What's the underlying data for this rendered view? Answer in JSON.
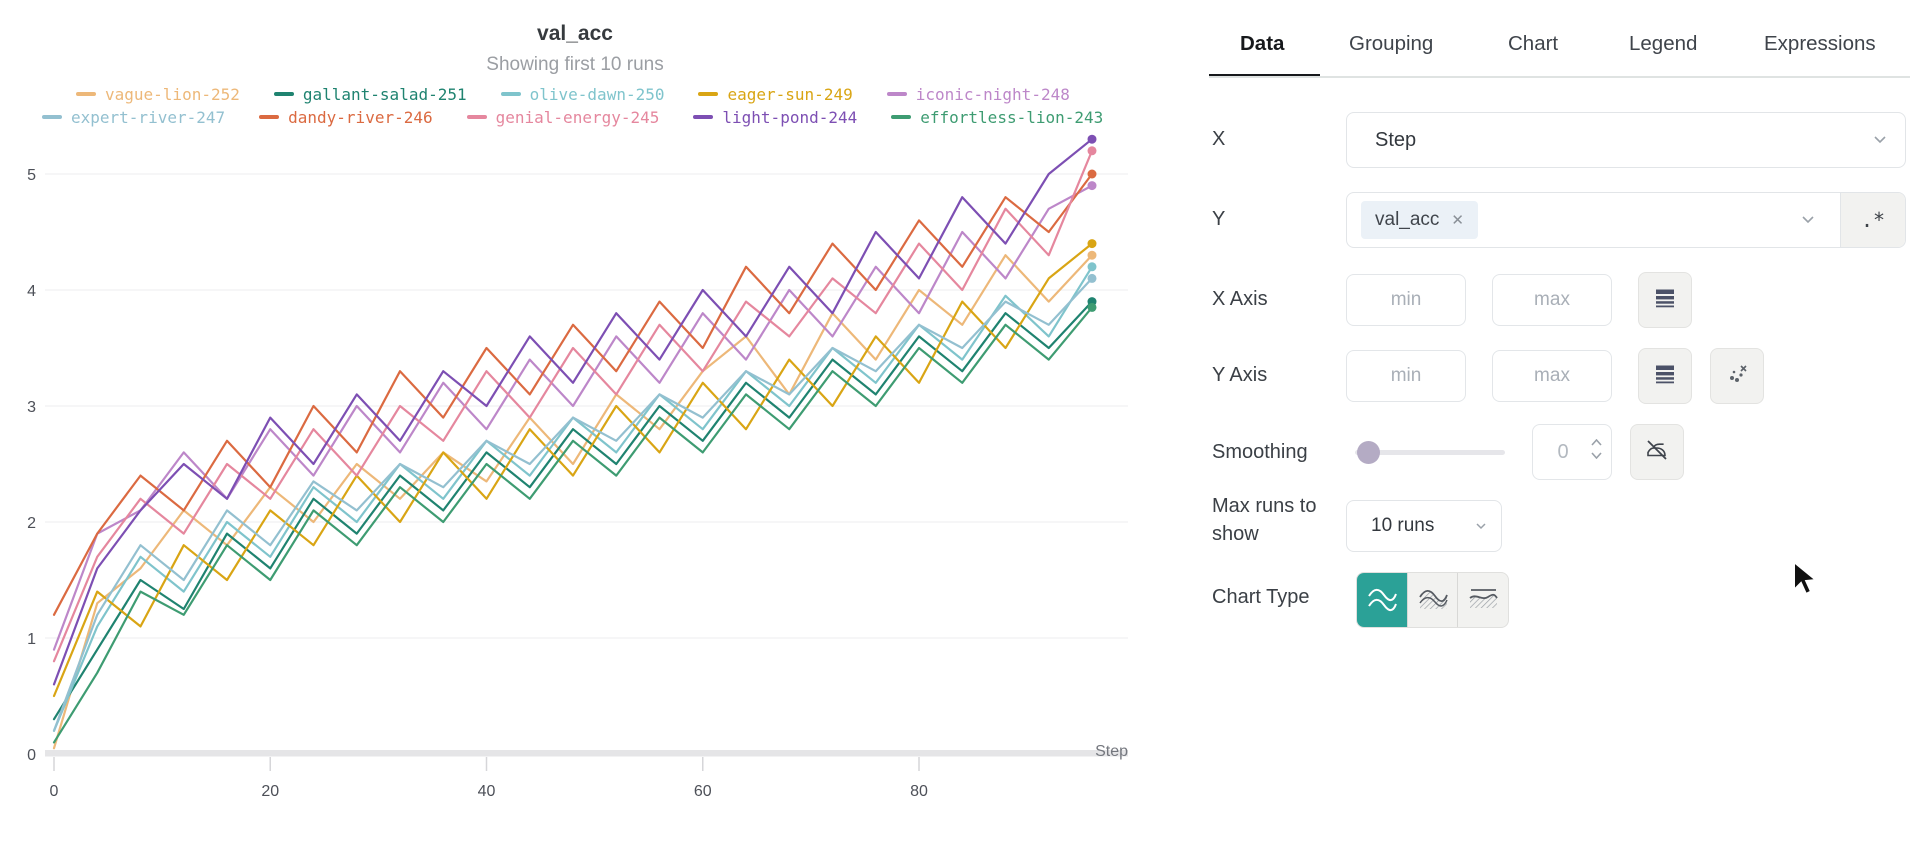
{
  "tabs": [
    {
      "label": "Data",
      "active": true
    },
    {
      "label": "Grouping",
      "active": false
    },
    {
      "label": "Chart",
      "active": false
    },
    {
      "label": "Legend",
      "active": false
    },
    {
      "label": "Expressions",
      "active": false
    }
  ],
  "form": {
    "x": {
      "label": "X",
      "value": "Step"
    },
    "y": {
      "label": "Y",
      "selected_metric": "val_acc",
      "remove_glyph": "✕",
      "regex_toggle": ".*"
    },
    "x_axis": {
      "label": "X Axis",
      "min_placeholder": "min",
      "max_placeholder": "max"
    },
    "y_axis": {
      "label": "Y Axis",
      "min_placeholder": "min",
      "max_placeholder": "max"
    },
    "smoothing": {
      "label": "Smoothing",
      "value": "0"
    },
    "max_runs": {
      "label": "Max runs to show",
      "value": "10 runs"
    },
    "chart_type": {
      "label": "Chart Type",
      "selected_index": 0
    }
  },
  "colors": {
    "accent_teal": "#2BA197",
    "active_tab": "#17191C",
    "grid": "#EDEDEF",
    "axis_band": "#E5E5E7",
    "tick_text": "#4D5058"
  },
  "chart_data": {
    "type": "line",
    "title": "val_acc",
    "subtitle": "Showing first 10 runs",
    "xlabel": "Step",
    "ylabel": "",
    "xlim": [
      0,
      97
    ],
    "ylim": [
      0,
      5.4
    ],
    "xticks": [
      0,
      20,
      40,
      60,
      80
    ],
    "yticks": [
      0,
      1,
      2,
      3,
      4,
      5
    ],
    "grid": true,
    "legend_position": "top",
    "x": [
      0,
      4,
      8,
      12,
      16,
      20,
      24,
      28,
      32,
      36,
      40,
      44,
      48,
      52,
      56,
      60,
      64,
      68,
      72,
      76,
      80,
      84,
      88,
      92,
      96
    ],
    "series": [
      {
        "name": "vague-lion-252",
        "color": "#EDB879",
        "values": [
          0.05,
          1.3,
          1.6,
          2.1,
          1.8,
          2.3,
          2.0,
          2.5,
          2.2,
          2.6,
          2.35,
          2.9,
          2.5,
          3.1,
          2.8,
          3.3,
          3.6,
          3.1,
          3.8,
          3.4,
          4.0,
          3.7,
          4.3,
          3.9,
          4.3
        ]
      },
      {
        "name": "gallant-salad-251",
        "color": "#1F8370",
        "values": [
          0.3,
          0.9,
          1.5,
          1.25,
          1.9,
          1.6,
          2.2,
          1.9,
          2.4,
          2.1,
          2.6,
          2.3,
          2.8,
          2.5,
          3.0,
          2.7,
          3.2,
          2.9,
          3.4,
          3.1,
          3.6,
          3.3,
          3.8,
          3.5,
          3.9
        ]
      },
      {
        "name": "olive-dawn-250",
        "color": "#7FC4CC",
        "values": [
          0.2,
          1.1,
          1.7,
          1.4,
          2.0,
          1.7,
          2.3,
          2.0,
          2.5,
          2.2,
          2.7,
          2.4,
          2.9,
          2.6,
          3.1,
          2.8,
          3.3,
          3.0,
          3.5,
          3.2,
          3.7,
          3.4,
          3.95,
          3.6,
          4.2
        ]
      },
      {
        "name": "eager-sun-249",
        "color": "#D9A514",
        "values": [
          0.5,
          1.4,
          1.1,
          1.8,
          1.5,
          2.1,
          1.8,
          2.4,
          2.0,
          2.6,
          2.2,
          2.8,
          2.4,
          3.0,
          2.6,
          3.2,
          2.8,
          3.4,
          3.0,
          3.6,
          3.2,
          3.9,
          3.5,
          4.1,
          4.4
        ]
      },
      {
        "name": "iconic-night-248",
        "color": "#BD87C9",
        "values": [
          0.9,
          1.9,
          2.1,
          2.6,
          2.2,
          2.8,
          2.4,
          3.0,
          2.6,
          3.2,
          2.8,
          3.4,
          3.0,
          3.6,
          3.2,
          3.8,
          3.4,
          4.0,
          3.6,
          4.2,
          3.8,
          4.5,
          4.1,
          4.7,
          4.9
        ]
      },
      {
        "name": "expert-river-247",
        "color": "#93C0D0",
        "values": [
          0.2,
          1.2,
          1.8,
          1.5,
          2.1,
          1.8,
          2.35,
          2.1,
          2.5,
          2.3,
          2.7,
          2.5,
          2.9,
          2.7,
          3.1,
          2.9,
          3.3,
          3.1,
          3.5,
          3.3,
          3.7,
          3.5,
          3.9,
          3.7,
          4.1
        ]
      },
      {
        "name": "dandy-river-246",
        "color": "#DB6A41",
        "values": [
          1.2,
          1.9,
          2.4,
          2.1,
          2.7,
          2.3,
          3.0,
          2.6,
          3.3,
          2.9,
          3.5,
          3.1,
          3.7,
          3.3,
          3.9,
          3.5,
          4.2,
          3.8,
          4.4,
          4.0,
          4.6,
          4.2,
          4.8,
          4.5,
          5.0
        ]
      },
      {
        "name": "genial-energy-245",
        "color": "#E5879E",
        "values": [
          0.8,
          1.7,
          2.2,
          1.9,
          2.5,
          2.2,
          2.8,
          2.4,
          3.0,
          2.7,
          3.3,
          2.9,
          3.5,
          3.1,
          3.7,
          3.3,
          3.9,
          3.6,
          4.1,
          3.8,
          4.4,
          4.0,
          4.7,
          4.3,
          5.2
        ]
      },
      {
        "name": "light-pond-244",
        "color": "#7D4FB3",
        "values": [
          0.6,
          1.6,
          2.1,
          2.5,
          2.2,
          2.9,
          2.5,
          3.1,
          2.7,
          3.3,
          3.0,
          3.6,
          3.2,
          3.8,
          3.4,
          4.0,
          3.6,
          4.2,
          3.8,
          4.5,
          4.1,
          4.8,
          4.4,
          5.0,
          5.3
        ]
      },
      {
        "name": "effortless-lion-243",
        "color": "#3E9C72",
        "values": [
          0.1,
          0.7,
          1.4,
          1.2,
          1.8,
          1.5,
          2.1,
          1.8,
          2.3,
          2.0,
          2.5,
          2.2,
          2.7,
          2.4,
          2.9,
          2.6,
          3.1,
          2.8,
          3.3,
          3.0,
          3.5,
          3.2,
          3.7,
          3.4,
          3.85
        ]
      }
    ]
  }
}
